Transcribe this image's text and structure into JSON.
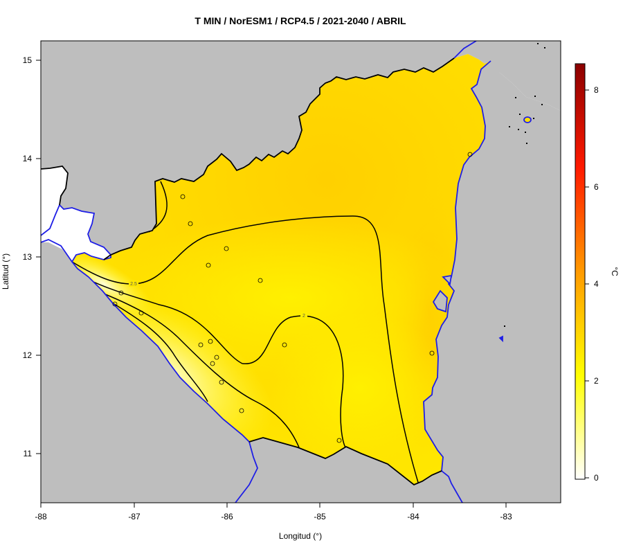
{
  "title": "T MIN / NorESM1 / RCP4.5 / 2021-2040 / ABRIL",
  "axes": {
    "xlabel": "Longitud (°)",
    "ylabel": "Latitud (°)",
    "x_ticks": [
      "-88",
      "-87",
      "-86",
      "-85",
      "-84",
      "-83"
    ],
    "y_ticks": [
      "11",
      "12",
      "13",
      "14",
      "15"
    ]
  },
  "colorbar": {
    "unit": "°C",
    "ticks": [
      "0",
      "2",
      "4",
      "6",
      "8"
    ],
    "range": [
      -0.15,
      8.55
    ],
    "colors": [
      "#ffffff",
      "#ffff00",
      "#ff8c00",
      "#ff0000",
      "#8b0000"
    ]
  },
  "contour_labels": [
    "2.5",
    "2"
  ],
  "colors": {
    "land_outside": "#bebebe",
    "coast": "#1e1ee6",
    "border": "#000000",
    "contour": "#000000"
  }
}
